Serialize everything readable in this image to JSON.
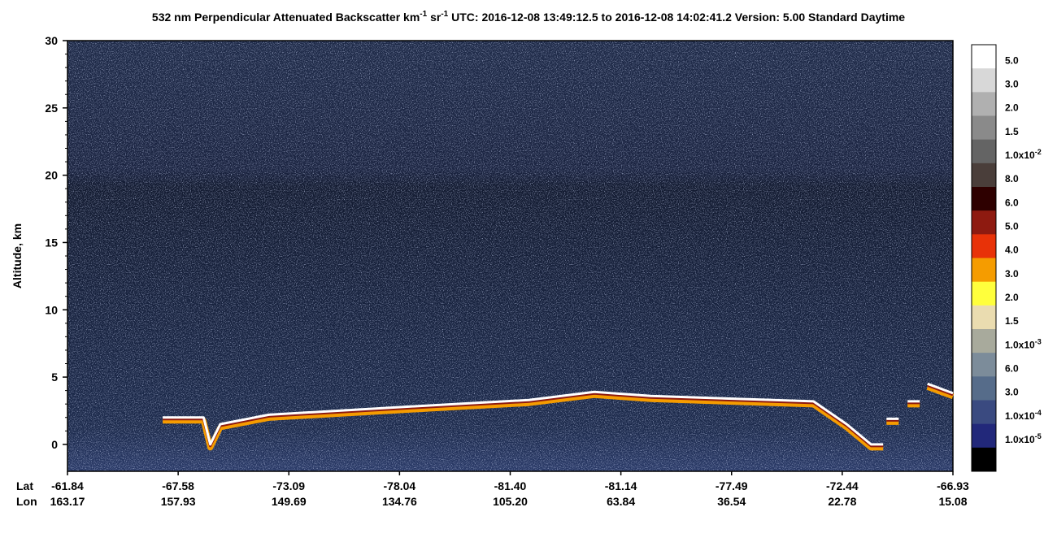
{
  "chart_data": {
    "type": "heatmap",
    "title": {
      "prefix": "532 nm Perpendicular Attenuated Backscatter km",
      "exp1": "-1",
      "mid": " sr",
      "exp2": "-1",
      "suffix": "  UTC: 2016-12-08 13:49:12.5 to 2016-12-08 14:02:41.2  Version: 5.00 Standard Daytime"
    },
    "y_label": "Altitude, km",
    "ylim": [
      -2,
      30
    ],
    "yticks": [
      0,
      5,
      10,
      15,
      20,
      25,
      30
    ],
    "x_row_labels": [
      "Lat",
      "Lon"
    ],
    "lat": [
      "-61.84",
      "-67.58",
      "-73.09",
      "-78.04",
      "-81.40",
      "-81.14",
      "-77.49",
      "-72.44",
      "-66.93"
    ],
    "lon": [
      "163.17",
      "157.93",
      "149.69",
      "134.76",
      "105.20",
      "63.84",
      "36.54",
      "22.78",
      "15.08"
    ],
    "xlim": [
      0,
      8
    ],
    "series": [
      {
        "color": "#ffffff",
        "x": [
          0.86,
          1.23,
          1.29,
          1.38,
          1.82,
          3.07,
          4.17,
          4.76,
          5.27,
          6.74,
          7.04,
          7.26,
          7.37,
          null,
          7.4,
          7.51,
          null,
          7.59,
          7.7,
          null,
          7.77,
          8.0
        ],
        "values": [
          2,
          2,
          0,
          1.5,
          2.2,
          2.8,
          3.3,
          3.9,
          3.6,
          3.2,
          1.5,
          0,
          0,
          null,
          1.9,
          1.9,
          null,
          3.2,
          3.2,
          null,
          4.5,
          3.8
        ]
      }
    ],
    "colorbar": {
      "colors": [
        "#ffffff",
        "#d8d8d8",
        "#b0b0b0",
        "#8a8a8a",
        "#646464",
        "#4a3e3a",
        "#2e0000",
        "#8e1a10",
        "#e83208",
        "#f59c00",
        "#ffff3c",
        "#eadcb0",
        "#a8aa9c",
        "#7c8c9a",
        "#566c8a",
        "#3a4a80",
        "#22287a",
        "#000000"
      ],
      "labels": [
        {
          "text": "5.0"
        },
        {
          "text": "3.0"
        },
        {
          "text": "2.0"
        },
        {
          "text": "1.5"
        },
        {
          "text": "1.0x10",
          "exp": "-2"
        },
        {
          "text": "8.0"
        },
        {
          "text": "6.0"
        },
        {
          "text": "5.0"
        },
        {
          "text": "4.0"
        },
        {
          "text": "3.0"
        },
        {
          "text": "2.0"
        },
        {
          "text": "1.5"
        },
        {
          "text": "1.0x10",
          "exp": "-3"
        },
        {
          "text": "6.0"
        },
        {
          "text": "3.0"
        },
        {
          "text": "1.0x10",
          "exp": "-4"
        },
        {
          "text": "1.0x10",
          "exp": "-5"
        }
      ]
    }
  }
}
